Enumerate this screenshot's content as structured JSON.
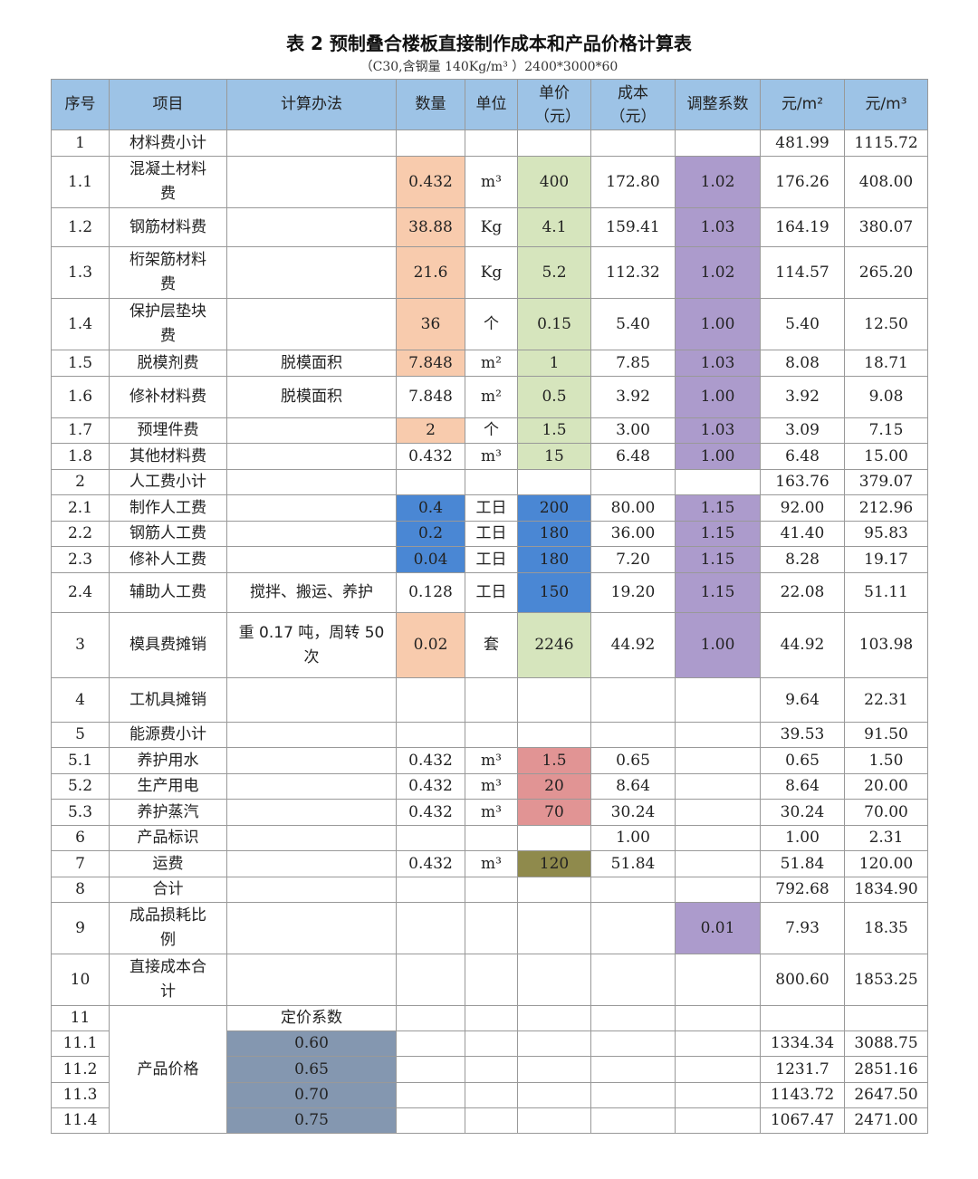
{
  "title": "表 2 预制叠合楼板直接制作成本和产品价格计算表",
  "subtitle": "（C30,含钢量 140Kg/m³ ）2400*3000*60",
  "colors": {
    "header": "#9dc3e6",
    "orange": "#f8cbad",
    "green": "#d6e5bd",
    "purple": "#ac9bcc",
    "blue": "#4a87d4",
    "red": "#e19494",
    "olive": "#8f8a4c",
    "slate": "#8497b0"
  },
  "headers": [
    "序号",
    "项目",
    "计算办法",
    "数量",
    "单位",
    "单价（元）",
    "成本（元）",
    "调整系数",
    "元/m²",
    "元/m³"
  ],
  "rows": [
    {
      "cells": [
        "1",
        "材料费小计",
        "",
        "",
        "",
        "",
        "",
        "",
        "481.99",
        "1115.72"
      ]
    },
    {
      "cells": [
        "1.1",
        "混凝土材料费",
        "",
        "0.432",
        "m³",
        "400",
        "172.80",
        "1.02",
        "176.26",
        "408.00"
      ],
      "fill": {
        "3": "orange",
        "5": "green",
        "7": "purple"
      }
    },
    {
      "cells": [
        "1.2",
        "钢筋材料费",
        "",
        "38.88",
        "Kg",
        "4.1",
        "159.41",
        "1.03",
        "164.19",
        "380.07"
      ],
      "fill": {
        "3": "orange",
        "5": "green",
        "7": "purple"
      }
    },
    {
      "cells": [
        "1.3",
        "桁架筋材料费",
        "",
        "21.6",
        "Kg",
        "5.2",
        "112.32",
        "1.02",
        "114.57",
        "265.20"
      ],
      "fill": {
        "3": "orange",
        "5": "green",
        "7": "purple"
      }
    },
    {
      "cells": [
        "1.4",
        "保护层垫块费",
        "",
        "36",
        "个",
        "0.15",
        "5.40",
        "1.00",
        "5.40",
        "12.50"
      ],
      "fill": {
        "3": "orange",
        "5": "green",
        "7": "purple"
      }
    },
    {
      "cells": [
        "1.5",
        "脱模剂费",
        "脱模面积",
        "7.848",
        "m²",
        "1",
        "7.85",
        "1.03",
        "8.08",
        "18.71"
      ],
      "fill": {
        "3": "orange",
        "5": "green",
        "7": "purple"
      }
    },
    {
      "cells": [
        "1.6",
        "修补材料费",
        "脱模面积",
        "7.848",
        "m²",
        "0.5",
        "3.92",
        "1.00",
        "3.92",
        "9.08"
      ],
      "fill": {
        "5": "green",
        "7": "purple"
      }
    },
    {
      "cells": [
        "1.7",
        "预埋件费",
        "",
        "2",
        "个",
        "1.5",
        "3.00",
        "1.03",
        "3.09",
        "7.15"
      ],
      "fill": {
        "3": "orange",
        "5": "green",
        "7": "purple"
      }
    },
    {
      "cells": [
        "1.8",
        "其他材料费",
        "",
        "0.432",
        "m³",
        "15",
        "6.48",
        "1.00",
        "6.48",
        "15.00"
      ],
      "fill": {
        "5": "green",
        "7": "purple"
      }
    },
    {
      "cells": [
        "2",
        "人工费小计",
        "",
        "",
        "",
        "",
        "",
        "",
        "163.76",
        "379.07"
      ]
    },
    {
      "cells": [
        "2.1",
        "制作人工费",
        "",
        "0.4",
        "工日",
        "200",
        "80.00",
        "1.15",
        "92.00",
        "212.96"
      ],
      "fill": {
        "3": "blue",
        "5": "blue",
        "7": "purple"
      }
    },
    {
      "cells": [
        "2.2",
        "钢筋人工费",
        "",
        "0.2",
        "工日",
        "180",
        "36.00",
        "1.15",
        "41.40",
        "95.83"
      ],
      "fill": {
        "3": "blue",
        "5": "blue",
        "7": "purple"
      }
    },
    {
      "cells": [
        "2.3",
        "修补人工费",
        "",
        "0.04",
        "工日",
        "180",
        "7.20",
        "1.15",
        "8.28",
        "19.17"
      ],
      "fill": {
        "3": "blue",
        "5": "blue",
        "7": "purple"
      }
    },
    {
      "cells": [
        "2.4",
        "辅助人工费",
        "搅拌、搬运、养护",
        "0.128",
        "工日",
        "150",
        "19.20",
        "1.15",
        "22.08",
        "51.11"
      ],
      "fill": {
        "5": "blue",
        "7": "purple"
      }
    },
    {
      "cells": [
        "3",
        "模具费摊销",
        "重 0.17 吨，周转 50 次",
        "0.02",
        "套",
        "2246",
        "44.92",
        "1.00",
        "44.92",
        "103.98"
      ],
      "fill": {
        "3": "orange",
        "5": "green",
        "7": "purple"
      }
    },
    {
      "cells": [
        "4",
        "工机具摊销",
        "",
        "",
        "",
        "",
        "",
        "",
        "9.64",
        "22.31"
      ]
    },
    {
      "cells": [
        "5",
        "能源费小计",
        "",
        "",
        "",
        "",
        "",
        "",
        "39.53",
        "91.50"
      ]
    },
    {
      "cells": [
        "5.1",
        "养护用水",
        "",
        "0.432",
        "m³",
        "1.5",
        "0.65",
        "",
        "0.65",
        "1.50"
      ],
      "fill": {
        "5": "red"
      }
    },
    {
      "cells": [
        "5.2",
        "生产用电",
        "",
        "0.432",
        "m³",
        "20",
        "8.64",
        "",
        "8.64",
        "20.00"
      ],
      "fill": {
        "5": "red"
      }
    },
    {
      "cells": [
        "5.3",
        "养护蒸汽",
        "",
        "0.432",
        "m³",
        "70",
        "30.24",
        "",
        "30.24",
        "70.00"
      ],
      "fill": {
        "5": "red"
      }
    },
    {
      "cells": [
        "6",
        "产品标识",
        "",
        "",
        "",
        "",
        "1.00",
        "",
        "1.00",
        "2.31"
      ]
    },
    {
      "cells": [
        "7",
        "运费",
        "",
        "0.432",
        "m³",
        "120",
        "51.84",
        "",
        "51.84",
        "120.00"
      ],
      "fill": {
        "5": "olive"
      }
    },
    {
      "cells": [
        "8",
        "合计",
        "",
        "",
        "",
        "",
        "",
        "",
        "792.68",
        "1834.90"
      ]
    },
    {
      "cells": [
        "9",
        "成品损耗比例",
        "",
        "",
        "",
        "",
        "",
        "0.01",
        "7.93",
        "18.35"
      ],
      "fill": {
        "7": "purple"
      }
    },
    {
      "cells": [
        "10",
        "直接成本合计",
        "",
        "",
        "",
        "",
        "",
        "",
        "800.60",
        "1853.25"
      ]
    },
    {
      "cells": [
        "11",
        "产品价格",
        "定价系数",
        "",
        "",
        "",
        "",
        "",
        "",
        ""
      ]
    },
    {
      "cells": [
        "11.1",
        "",
        "0.60",
        "",
        "",
        "",
        "",
        "",
        "1334.34",
        "3088.75"
      ],
      "fill": {
        "2": "slate"
      }
    },
    {
      "cells": [
        "11.2",
        "",
        "0.65",
        "",
        "",
        "",
        "",
        "",
        "1231.7",
        "2851.16"
      ],
      "fill": {
        "2": "slate"
      }
    },
    {
      "cells": [
        "11.3",
        "",
        "0.70",
        "",
        "",
        "",
        "",
        "",
        "1143.72",
        "2647.50"
      ],
      "fill": {
        "2": "slate"
      }
    },
    {
      "cells": [
        "11.4",
        "",
        "0.75",
        "",
        "",
        "",
        "",
        "",
        "1067.47",
        "2471.00"
      ],
      "fill": {
        "2": "slate"
      }
    }
  ]
}
